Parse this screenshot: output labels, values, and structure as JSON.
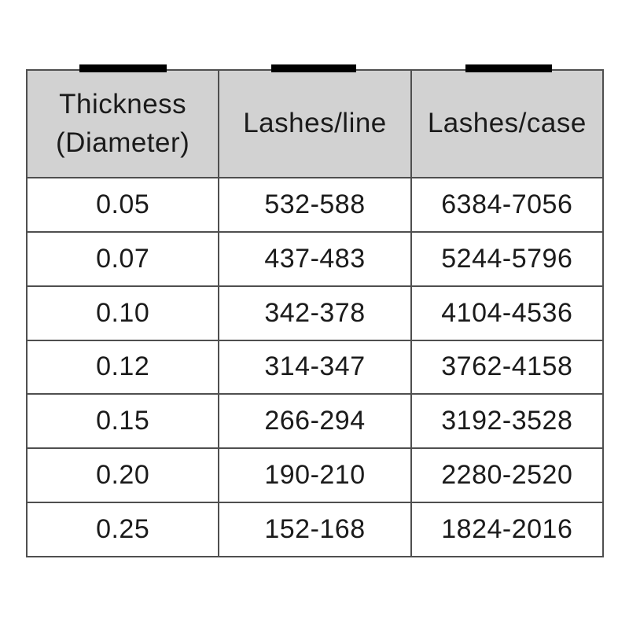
{
  "colors": {
    "header_bg": "#d2d2d2",
    "border": "#4f4f4f",
    "text": "#1b1b1b",
    "redaction_bar": "#000000",
    "background": "#ffffff"
  },
  "header_display": [
    "Thickness\n(Diameter)",
    "Lashes/line",
    "Lashes/case"
  ],
  "chart_data": {
    "type": "table",
    "columns": [
      "Thickness (Diameter)",
      "Lashes/line",
      "Lashes/case"
    ],
    "rows": [
      [
        "0.05",
        "532-588",
        "6384-7056"
      ],
      [
        "0.07",
        "437-483",
        "5244-5796"
      ],
      [
        "0.10",
        "342-378",
        "4104-4536"
      ],
      [
        "0.12",
        "314-347",
        "3762-4158"
      ],
      [
        "0.15",
        "266-294",
        "3192-3528"
      ],
      [
        "0.20",
        "190-210",
        "2280-2520"
      ],
      [
        "0.25",
        "152-168",
        "1824-2016"
      ]
    ]
  }
}
